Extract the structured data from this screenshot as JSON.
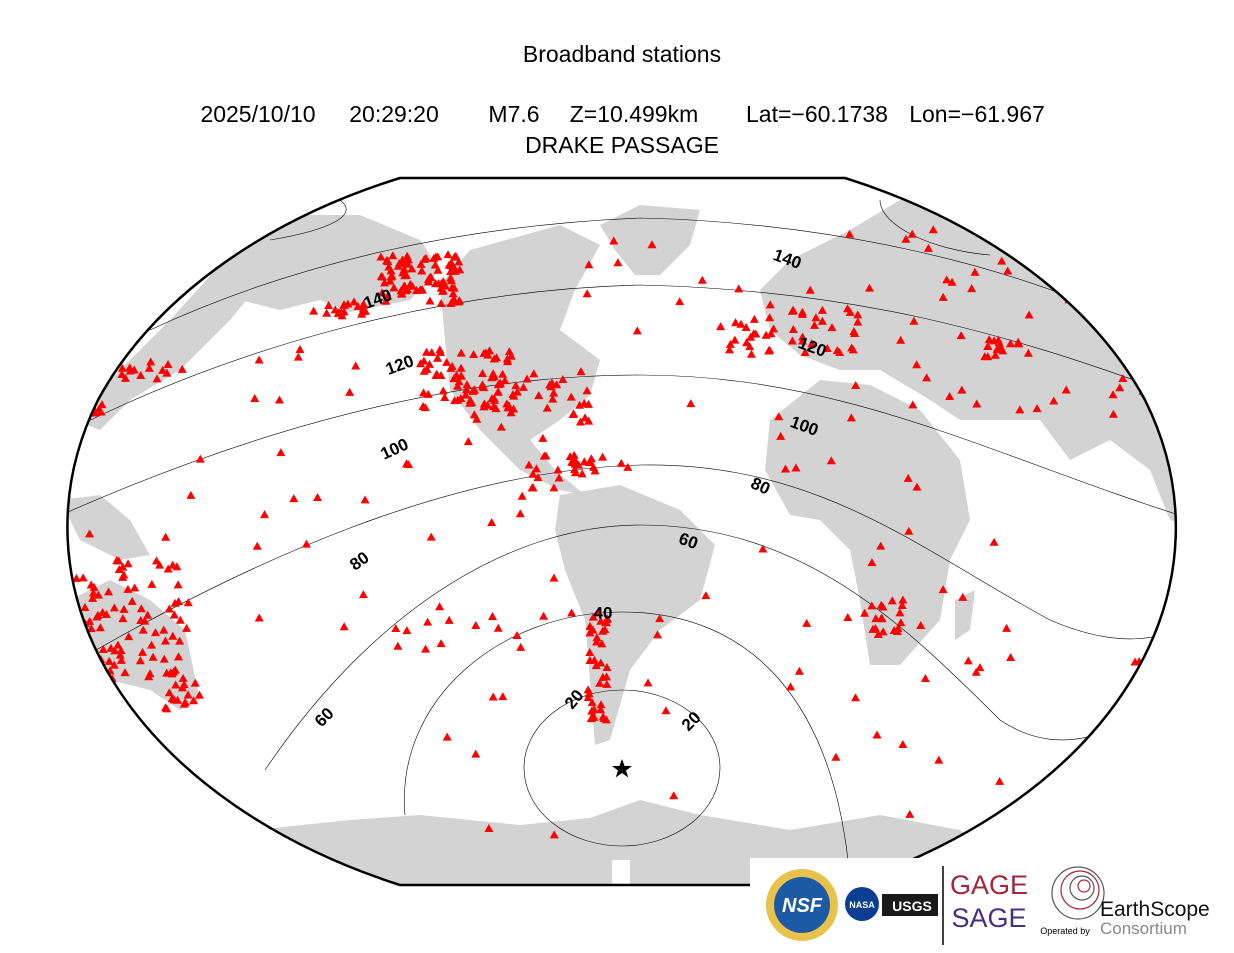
{
  "title": "Broadband stations",
  "event": {
    "date": "2025/10/10",
    "time": "20:29:20",
    "magnitude": "M7.6",
    "depth": "Z=10.499km",
    "lat": "Lat=−60.1738",
    "lon": "Lon=−61.967",
    "region": "DRAKE PASSAGE"
  },
  "contour_labels": [
    20,
    20,
    40,
    60,
    60,
    80,
    80,
    100,
    100,
    120,
    120,
    140,
    140
  ],
  "logos": {
    "nsf": "NSF",
    "nasa": "NASA",
    "usgs": "USGS",
    "gage": "GAGE",
    "sage": "SAGE",
    "operated_by": "Operated by",
    "earthscope": "EarthScope",
    "consortium": "Consortium"
  }
}
